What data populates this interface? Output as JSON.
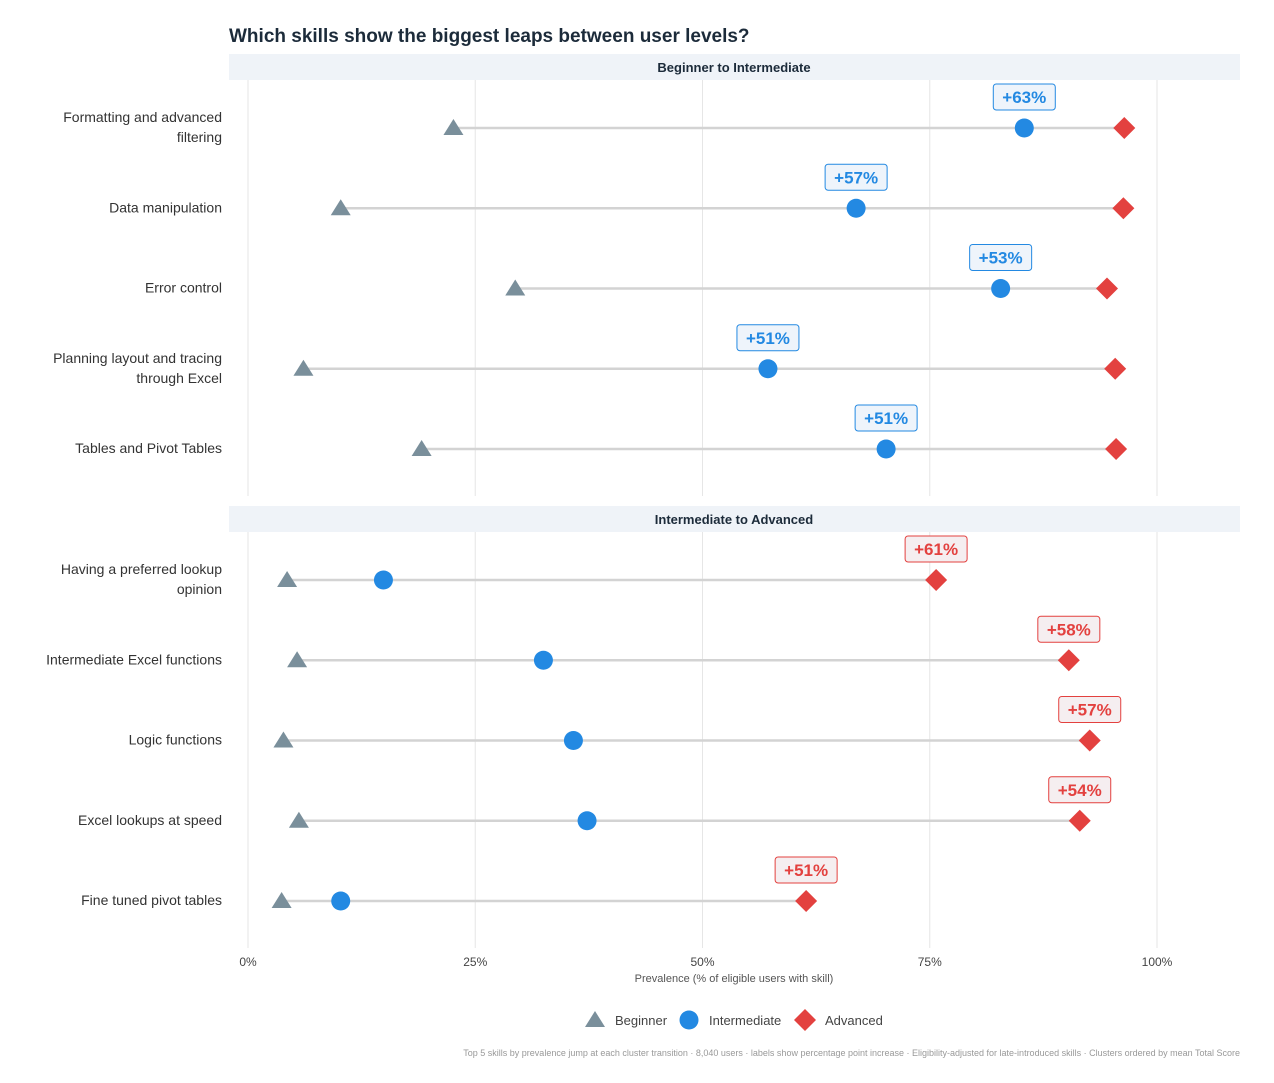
{
  "chart_data": {
    "type": "dot-plot",
    "title": "Which skills show the biggest leaps between user levels?",
    "xlabel": "Prevalence (% of eligible users with skill)",
    "xlim": [
      0,
      100
    ],
    "x_ticks": [
      "0%",
      "25%",
      "50%",
      "75%",
      "100%"
    ],
    "grid": "vertical",
    "legend_placement": "bottom",
    "series": [
      {
        "name": "Beginner",
        "color": "#7a8f9b",
        "shape": "triangle"
      },
      {
        "name": "Intermediate",
        "color": "#2389e2",
        "shape": "circle"
      },
      {
        "name": "Advanced",
        "color": "#e3413f",
        "shape": "diamond"
      }
    ],
    "panels": [
      {
        "title": "Beginner to Intermediate",
        "label_color": "#2389e2",
        "label_on": "Intermediate",
        "rows": [
          {
            "skill": "Formatting and advanced\nfiltering",
            "Beginner": 22.6,
            "Intermediate": 85.4,
            "Advanced": 96.4,
            "label": "+63%"
          },
          {
            "skill": "Data manipulation",
            "Beginner": 10.2,
            "Intermediate": 66.9,
            "Advanced": 96.3,
            "label": "+57%"
          },
          {
            "skill": "Error control",
            "Beginner": 29.4,
            "Intermediate": 82.8,
            "Advanced": 94.5,
            "label": "+53%"
          },
          {
            "skill": "Planning layout and tracing\nthrough Excel",
            "Beginner": 6.1,
            "Intermediate": 57.2,
            "Advanced": 95.4,
            "label": "+51%"
          },
          {
            "skill": "Tables and Pivot Tables",
            "Beginner": 19.1,
            "Intermediate": 70.2,
            "Advanced": 95.5,
            "label": "+51%"
          }
        ]
      },
      {
        "title": "Intermediate to Advanced",
        "label_color": "#e3413f",
        "label_on": "Advanced",
        "rows": [
          {
            "skill": "Having a preferred lookup\nopinion",
            "Beginner": 4.3,
            "Intermediate": 14.9,
            "Advanced": 75.7,
            "label": "+61%"
          },
          {
            "skill": "Intermediate Excel functions",
            "Beginner": 5.4,
            "Intermediate": 32.5,
            "Advanced": 90.3,
            "label": "+58%"
          },
          {
            "skill": "Logic functions",
            "Beginner": 3.9,
            "Intermediate": 35.8,
            "Advanced": 92.6,
            "label": "+57%"
          },
          {
            "skill": "Excel lookups at speed",
            "Beginner": 5.6,
            "Intermediate": 37.3,
            "Advanced": 91.5,
            "label": "+54%"
          },
          {
            "skill": "Fine tuned pivot tables",
            "Beginner": 3.7,
            "Intermediate": 10.2,
            "Advanced": 61.4,
            "label": "+51%"
          }
        ]
      }
    ],
    "caption": "Top 5 skills by prevalence jump at each cluster transition  ·  8,040 users  ·  labels show percentage point increase  ·  Eligibility-adjusted for late-introduced skills  ·  Clusters ordered by mean Total Score"
  }
}
